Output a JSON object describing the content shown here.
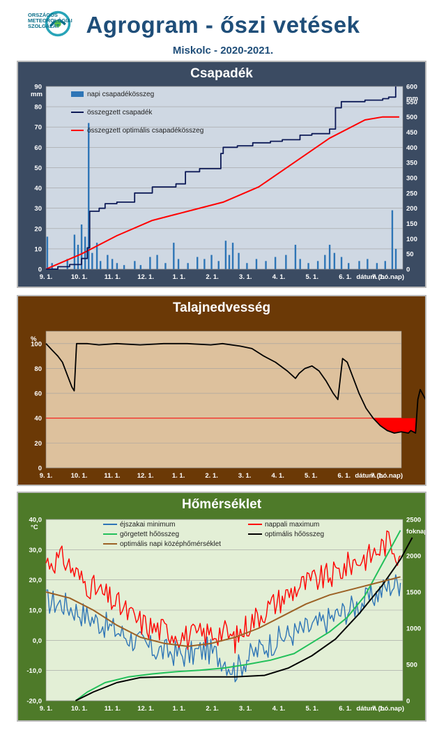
{
  "header": {
    "logo_line1": "ORSZÁGOS",
    "logo_line2": "METEOROLÓGIAI",
    "logo_line3": "SZOLGÁLAT",
    "title": "Agrogram - őszi vetések",
    "subtitle": "Miskolc - 2020-2021."
  },
  "colors": {
    "panel1_bg": "#3b4b62",
    "panel1_plot": "#cfd8e3",
    "panel2_bg": "#6b3906",
    "panel2_plot": "#ddc19d",
    "panel3_bg": "#4e7a29",
    "panel3_plot": "#e3efd6",
    "precip_bar": "#2e75b6",
    "cumulative": "#0d1a57",
    "optimal": "#ff0000",
    "night_min": "#2e75b6",
    "day_max": "#ff0000",
    "rolling_heat": "#22c05a",
    "opt_heat": "#000000",
    "opt_mean": "#9c6226"
  },
  "chart_data": [
    {
      "type": "bar",
      "title": "Csapadék",
      "x_ticks": [
        "9. 1.",
        "10. 1.",
        "11. 1.",
        "12. 1.",
        "1. 1.",
        "2. 1.",
        "3. 1.",
        "4. 1.",
        "5. 1.",
        "6. 1.",
        "7. 1."
      ],
      "xlabel": "dátum (hó.nap)",
      "x_range_days": [
        0,
        302
      ],
      "ylabel": "mm",
      "ylim": [
        0,
        90
      ],
      "y_ticks": [
        0,
        10,
        20,
        30,
        40,
        50,
        60,
        70,
        80,
        90
      ],
      "y2label": "mm",
      "y2lim": [
        0,
        600
      ],
      "y2_ticks": [
        0,
        50,
        100,
        150,
        200,
        250,
        300,
        350,
        400,
        450,
        500,
        550,
        600
      ],
      "legend": [
        "napi csapadékösszeg",
        "összegzett csapadék",
        "összegzett optimális  csapadékösszeg"
      ],
      "daily_bars": [
        {
          "day": 1,
          "value": 16
        },
        {
          "day": 5,
          "value": 3
        },
        {
          "day": 18,
          "value": 5
        },
        {
          "day": 24,
          "value": 17
        },
        {
          "day": 27,
          "value": 12
        },
        {
          "day": 30,
          "value": 22
        },
        {
          "day": 33,
          "value": 16
        },
        {
          "day": 36,
          "value": 72
        },
        {
          "day": 39,
          "value": 8
        },
        {
          "day": 43,
          "value": 13
        },
        {
          "day": 46,
          "value": 4
        },
        {
          "day": 52,
          "value": 7
        },
        {
          "day": 56,
          "value": 5
        },
        {
          "day": 60,
          "value": 3
        },
        {
          "day": 66,
          "value": 2
        },
        {
          "day": 75,
          "value": 4
        },
        {
          "day": 80,
          "value": 2
        },
        {
          "day": 88,
          "value": 6
        },
        {
          "day": 94,
          "value": 7
        },
        {
          "day": 101,
          "value": 3
        },
        {
          "day": 108,
          "value": 13
        },
        {
          "day": 112,
          "value": 5
        },
        {
          "day": 120,
          "value": 3
        },
        {
          "day": 128,
          "value": 6
        },
        {
          "day": 134,
          "value": 5
        },
        {
          "day": 140,
          "value": 7
        },
        {
          "day": 146,
          "value": 4
        },
        {
          "day": 152,
          "value": 14
        },
        {
          "day": 155,
          "value": 7
        },
        {
          "day": 158,
          "value": 13
        },
        {
          "day": 163,
          "value": 8
        },
        {
          "day": 170,
          "value": 3
        },
        {
          "day": 178,
          "value": 5
        },
        {
          "day": 186,
          "value": 4
        },
        {
          "day": 194,
          "value": 6
        },
        {
          "day": 203,
          "value": 7
        },
        {
          "day": 211,
          "value": 12
        },
        {
          "day": 215,
          "value": 5
        },
        {
          "day": 222,
          "value": 3
        },
        {
          "day": 230,
          "value": 4
        },
        {
          "day": 236,
          "value": 7
        },
        {
          "day": 240,
          "value": 12
        },
        {
          "day": 244,
          "value": 8
        },
        {
          "day": 250,
          "value": 6
        },
        {
          "day": 256,
          "value": 3
        },
        {
          "day": 265,
          "value": 4
        },
        {
          "day": 272,
          "value": 5
        },
        {
          "day": 280,
          "value": 3
        },
        {
          "day": 287,
          "value": 4
        },
        {
          "day": 293,
          "value": 29
        },
        {
          "day": 296,
          "value": 10
        }
      ],
      "cumulative_precip": [
        {
          "day": 0,
          "value": 0
        },
        {
          "day": 10,
          "value": 8
        },
        {
          "day": 20,
          "value": 15
        },
        {
          "day": 30,
          "value": 35
        },
        {
          "day": 35,
          "value": 70
        },
        {
          "day": 37,
          "value": 190
        },
        {
          "day": 45,
          "value": 200
        },
        {
          "day": 50,
          "value": 215
        },
        {
          "day": 60,
          "value": 220
        },
        {
          "day": 75,
          "value": 250
        },
        {
          "day": 90,
          "value": 270
        },
        {
          "day": 110,
          "value": 280
        },
        {
          "day": 118,
          "value": 320
        },
        {
          "day": 130,
          "value": 330
        },
        {
          "day": 148,
          "value": 380
        },
        {
          "day": 150,
          "value": 400
        },
        {
          "day": 162,
          "value": 405
        },
        {
          "day": 175,
          "value": 415
        },
        {
          "day": 190,
          "value": 420
        },
        {
          "day": 200,
          "value": 425
        },
        {
          "day": 215,
          "value": 440
        },
        {
          "day": 225,
          "value": 445
        },
        {
          "day": 240,
          "value": 460
        },
        {
          "day": 245,
          "value": 530
        },
        {
          "day": 250,
          "value": 550
        },
        {
          "day": 270,
          "value": 555
        },
        {
          "day": 285,
          "value": 560
        },
        {
          "day": 290,
          "value": 565
        },
        {
          "day": 296,
          "value": 600
        }
      ],
      "optimal_cumulative": [
        {
          "day": 0,
          "value": 0
        },
        {
          "day": 30,
          "value": 50
        },
        {
          "day": 60,
          "value": 110
        },
        {
          "day": 90,
          "value": 160
        },
        {
          "day": 120,
          "value": 190
        },
        {
          "day": 150,
          "value": 220
        },
        {
          "day": 180,
          "value": 270
        },
        {
          "day": 210,
          "value": 350
        },
        {
          "day": 240,
          "value": 430
        },
        {
          "day": 270,
          "value": 490
        },
        {
          "day": 285,
          "value": 500
        },
        {
          "day": 299,
          "value": 500
        }
      ]
    },
    {
      "type": "line",
      "title": "Talajnedvesség",
      "x_ticks": [
        "9. 1.",
        "10. 1.",
        "11. 1.",
        "12. 1.",
        "1. 1.",
        "2. 1.",
        "3. 1.",
        "4. 1.",
        "5. 1.",
        "6. 1.",
        "7. 1."
      ],
      "xlabel": "dátum (hó.nap)",
      "x_range_days": [
        0,
        302
      ],
      "ylabel": "%",
      "ylim": [
        0,
        110
      ],
      "y_ticks": [
        0,
        20,
        40,
        60,
        80,
        100
      ],
      "threshold": 40,
      "soil_moisture": [
        {
          "day": 0,
          "value": 100
        },
        {
          "day": 5,
          "value": 95
        },
        {
          "day": 10,
          "value": 90
        },
        {
          "day": 14,
          "value": 85
        },
        {
          "day": 18,
          "value": 75
        },
        {
          "day": 22,
          "value": 65
        },
        {
          "day": 24,
          "value": 62
        },
        {
          "day": 26,
          "value": 100
        },
        {
          "day": 35,
          "value": 100
        },
        {
          "day": 45,
          "value": 99
        },
        {
          "day": 60,
          "value": 100
        },
        {
          "day": 80,
          "value": 99
        },
        {
          "day": 100,
          "value": 100
        },
        {
          "day": 120,
          "value": 100
        },
        {
          "day": 140,
          "value": 99
        },
        {
          "day": 150,
          "value": 100
        },
        {
          "day": 165,
          "value": 98
        },
        {
          "day": 175,
          "value": 96
        },
        {
          "day": 185,
          "value": 90
        },
        {
          "day": 195,
          "value": 85
        },
        {
          "day": 205,
          "value": 78
        },
        {
          "day": 212,
          "value": 72
        },
        {
          "day": 215,
          "value": 76
        },
        {
          "day": 220,
          "value": 80
        },
        {
          "day": 226,
          "value": 82
        },
        {
          "day": 232,
          "value": 78
        },
        {
          "day": 238,
          "value": 70
        },
        {
          "day": 244,
          "value": 60
        },
        {
          "day": 248,
          "value": 55
        },
        {
          "day": 252,
          "value": 88
        },
        {
          "day": 256,
          "value": 85
        },
        {
          "day": 260,
          "value": 75
        },
        {
          "day": 266,
          "value": 60
        },
        {
          "day": 272,
          "value": 48
        },
        {
          "day": 278,
          "value": 40
        },
        {
          "day": 284,
          "value": 34
        },
        {
          "day": 290,
          "value": 30
        },
        {
          "day": 296,
          "value": 28
        },
        {
          "day": 302,
          "value": 29
        },
        {
          "day": 308,
          "value": 28
        },
        {
          "day": 310,
          "value": 30
        },
        {
          "day": 314,
          "value": 28
        },
        {
          "day": 316,
          "value": 55
        },
        {
          "day": 318,
          "value": 63
        },
        {
          "day": 322,
          "value": 56
        },
        {
          "day": 324,
          "value": 52
        }
      ]
    },
    {
      "type": "line",
      "title": "Hőmérséklet",
      "x_ticks": [
        "9. 1.",
        "10. 1.",
        "11. 1.",
        "12. 1.",
        "1. 1.",
        "2. 1.",
        "3. 1.",
        "4. 1.",
        "5. 1.",
        "6. 1.",
        "7. 1."
      ],
      "xlabel": "dátum (hó.nap)",
      "x_range_days": [
        0,
        302
      ],
      "ylabel": "°C",
      "ylim": [
        -20,
        40
      ],
      "y_ticks": [
        "-20,0",
        "-10,0",
        "0,0",
        "10,0",
        "20,0",
        "30,0",
        "40,0"
      ],
      "y2label": "foknap",
      "y2lim": [
        0,
        2500
      ],
      "y2_ticks": [
        0,
        500,
        1000,
        1500,
        2000,
        2500
      ],
      "legend": [
        "éjszakai minimum",
        "nappali maximum",
        "görgetett hőösszeg",
        "optimális hőösszeg",
        "optimális napi középhőmérséklet"
      ],
      "night_min": [
        {
          "day": 0,
          "value": 13
        },
        {
          "day": 15,
          "value": 12
        },
        {
          "day": 30,
          "value": 9
        },
        {
          "day": 45,
          "value": 6
        },
        {
          "day": 60,
          "value": 3
        },
        {
          "day": 75,
          "value": 0
        },
        {
          "day": 90,
          "value": -3
        },
        {
          "day": 105,
          "value": -4
        },
        {
          "day": 120,
          "value": -5
        },
        {
          "day": 135,
          "value": -3
        },
        {
          "day": 150,
          "value": -6
        },
        {
          "day": 160,
          "value": -10
        },
        {
          "day": 170,
          "value": -6
        },
        {
          "day": 185,
          "value": -2
        },
        {
          "day": 200,
          "value": 1
        },
        {
          "day": 215,
          "value": 3
        },
        {
          "day": 230,
          "value": 5
        },
        {
          "day": 245,
          "value": 8
        },
        {
          "day": 260,
          "value": 11
        },
        {
          "day": 275,
          "value": 14
        },
        {
          "day": 290,
          "value": 18
        },
        {
          "day": 300,
          "value": 19
        }
      ],
      "day_max": [
        {
          "day": 0,
          "value": 26
        },
        {
          "day": 15,
          "value": 27
        },
        {
          "day": 30,
          "value": 20
        },
        {
          "day": 45,
          "value": 16
        },
        {
          "day": 60,
          "value": 12
        },
        {
          "day": 75,
          "value": 7
        },
        {
          "day": 90,
          "value": 4
        },
        {
          "day": 105,
          "value": 3
        },
        {
          "day": 120,
          "value": 1
        },
        {
          "day": 135,
          "value": 2
        },
        {
          "day": 150,
          "value": 3
        },
        {
          "day": 160,
          "value": 0
        },
        {
          "day": 170,
          "value": 5
        },
        {
          "day": 185,
          "value": 10
        },
        {
          "day": 200,
          "value": 14
        },
        {
          "day": 215,
          "value": 18
        },
        {
          "day": 230,
          "value": 20
        },
        {
          "day": 245,
          "value": 22
        },
        {
          "day": 260,
          "value": 26
        },
        {
          "day": 275,
          "value": 28
        },
        {
          "day": 290,
          "value": 33
        },
        {
          "day": 300,
          "value": 28
        }
      ],
      "rolling_heat_sum": [
        {
          "day": 25,
          "value": 0
        },
        {
          "day": 35,
          "value": 120
        },
        {
          "day": 50,
          "value": 250
        },
        {
          "day": 70,
          "value": 330
        },
        {
          "day": 90,
          "value": 370
        },
        {
          "day": 110,
          "value": 400
        },
        {
          "day": 130,
          "value": 420
        },
        {
          "day": 150,
          "value": 450
        },
        {
          "day": 170,
          "value": 500
        },
        {
          "day": 190,
          "value": 560
        },
        {
          "day": 210,
          "value": 650
        },
        {
          "day": 225,
          "value": 800
        },
        {
          "day": 240,
          "value": 950
        },
        {
          "day": 255,
          "value": 1150
        },
        {
          "day": 270,
          "value": 1450
        },
        {
          "day": 285,
          "value": 1900
        },
        {
          "day": 300,
          "value": 2350
        }
      ],
      "optimal_heat_sum": [
        {
          "day": 25,
          "value": 0
        },
        {
          "day": 40,
          "value": 120
        },
        {
          "day": 60,
          "value": 250
        },
        {
          "day": 80,
          "value": 320
        },
        {
          "day": 100,
          "value": 330
        },
        {
          "day": 130,
          "value": 330
        },
        {
          "day": 160,
          "value": 330
        },
        {
          "day": 185,
          "value": 350
        },
        {
          "day": 205,
          "value": 450
        },
        {
          "day": 225,
          "value": 620
        },
        {
          "day": 245,
          "value": 850
        },
        {
          "day": 265,
          "value": 1200
        },
        {
          "day": 285,
          "value": 1600
        },
        {
          "day": 300,
          "value": 1950
        },
        {
          "day": 310,
          "value": 2250
        }
      ],
      "optimal_daily_mean": [
        {
          "day": 0,
          "value": 16
        },
        {
          "day": 20,
          "value": 14
        },
        {
          "day": 40,
          "value": 10
        },
        {
          "day": 60,
          "value": 5
        },
        {
          "day": 80,
          "value": 1
        },
        {
          "day": 100,
          "value": -1
        },
        {
          "day": 120,
          "value": -2
        },
        {
          "day": 140,
          "value": -1
        },
        {
          "day": 160,
          "value": 1
        },
        {
          "day": 180,
          "value": 4
        },
        {
          "day": 200,
          "value": 8
        },
        {
          "day": 220,
          "value": 12
        },
        {
          "day": 240,
          "value": 15
        },
        {
          "day": 260,
          "value": 17
        },
        {
          "day": 280,
          "value": 19
        },
        {
          "day": 300,
          "value": 21
        }
      ]
    }
  ]
}
